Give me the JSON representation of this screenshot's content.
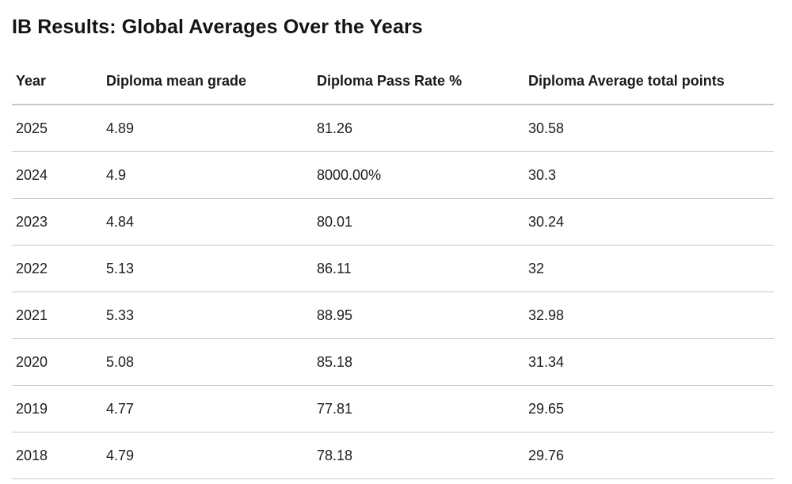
{
  "page": {
    "title": "IB Results: Global Averages Over the Years"
  },
  "table": {
    "headers": {
      "year": "Year",
      "mean_grade": "Diploma mean grade",
      "pass_rate": "Diploma Pass Rate %",
      "avg_points": "Diploma Average total points"
    },
    "rows": [
      {
        "year": "2025",
        "mean_grade": "4.89",
        "pass_rate": "81.26",
        "avg_points": "30.58"
      },
      {
        "year": "2024",
        "mean_grade": "4.9",
        "pass_rate": "8000.00%",
        "avg_points": "30.3"
      },
      {
        "year": "2023",
        "mean_grade": "4.84",
        "pass_rate": "80.01",
        "avg_points": "30.24"
      },
      {
        "year": "2022",
        "mean_grade": "5.13",
        "pass_rate": "86.11",
        "avg_points": "32"
      },
      {
        "year": "2021",
        "mean_grade": "5.33",
        "pass_rate": "88.95",
        "avg_points": "32.98"
      },
      {
        "year": "2020",
        "mean_grade": "5.08",
        "pass_rate": "85.18",
        "avg_points": "31.34"
      },
      {
        "year": "2019",
        "mean_grade": "4.77",
        "pass_rate": "77.81",
        "avg_points": "29.65"
      },
      {
        "year": "2018",
        "mean_grade": "4.79",
        "pass_rate": "78.18",
        "avg_points": "29.76"
      }
    ]
  }
}
